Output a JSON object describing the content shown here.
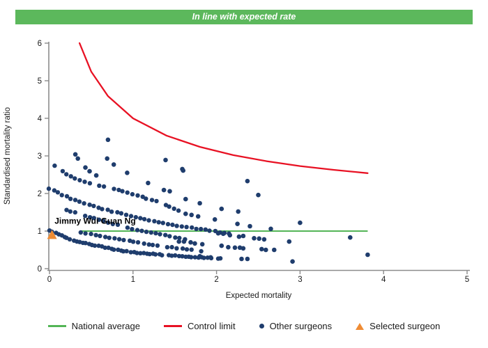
{
  "banner": {
    "title": "In line with expected rate"
  },
  "colors": {
    "banner_green": "#5cb85c",
    "national_average": "#53b556",
    "control_limit": "#e81123",
    "other_surgeons": "#1f3d6d",
    "selected_surgeon": "#ef8c34",
    "axis": "#8c8c8c",
    "text": "#1a1a1a"
  },
  "chart_data": {
    "type": "scatter",
    "title": "In line with expected rate",
    "xlabel": "Expected mortality",
    "ylabel": "Standardised mortality ratio",
    "xlim": [
      0,
      5
    ],
    "ylim": [
      0,
      6
    ],
    "x_ticks": [
      "0",
      "1",
      "2",
      "3",
      "4",
      "5"
    ],
    "y_ticks": [
      "0",
      "1",
      "2",
      "3",
      "4",
      "5",
      "6"
    ],
    "grid": false,
    "legend_position": "bottom",
    "surgeon_label": {
      "text": "Jimmy Wui Guan Ng",
      "x": 0.06,
      "y": 1.27
    },
    "selected_surgeon": {
      "x": 0.03,
      "y": 0.9
    },
    "national_average_line": {
      "y": 1.0,
      "x_start": 0.37,
      "x_end": 3.81
    },
    "control_limit_curve": [
      [
        0.36,
        6.0
      ],
      [
        0.5,
        5.24
      ],
      [
        0.7,
        4.59
      ],
      [
        1.0,
        4.0
      ],
      [
        1.4,
        3.54
      ],
      [
        1.8,
        3.24
      ],
      [
        2.2,
        3.02
      ],
      [
        2.6,
        2.86
      ],
      [
        3.0,
        2.73
      ],
      [
        3.4,
        2.63
      ],
      [
        3.81,
        2.54
      ]
    ],
    "other_surgeon_bands": [
      {
        "anchors": [
          [
            0.0,
            1.02
          ],
          [
            0.25,
            0.78
          ],
          [
            0.55,
            0.62
          ],
          [
            0.95,
            0.45
          ],
          [
            1.35,
            0.37
          ],
          [
            1.75,
            0.31
          ],
          [
            2.05,
            0.27
          ]
        ],
        "count": 55
      },
      {
        "anchors": [
          [
            0.38,
            0.97
          ],
          [
            0.62,
            0.87
          ],
          [
            0.92,
            0.75
          ],
          [
            1.25,
            0.63
          ],
          [
            1.55,
            0.54
          ],
          [
            1.82,
            0.47
          ]
        ],
        "count": 26
      },
      {
        "anchors": [
          [
            0.2,
            1.57
          ],
          [
            0.5,
            1.36
          ],
          [
            0.75,
            1.2
          ],
          [
            1.05,
            1.03
          ],
          [
            1.35,
            0.9
          ],
          [
            1.62,
            0.79
          ]
        ],
        "count": 26
      },
      {
        "anchors": [
          [
            0.0,
            2.13
          ],
          [
            0.3,
            1.83
          ],
          [
            0.62,
            1.6
          ],
          [
            0.95,
            1.42
          ],
          [
            1.3,
            1.24
          ],
          [
            1.6,
            1.12
          ],
          [
            1.9,
            1.02
          ],
          [
            2.15,
            0.93
          ]
        ],
        "count": 40
      },
      {
        "anchors": [
          [
            0.06,
            2.74
          ],
          [
            0.3,
            2.4
          ],
          [
            0.6,
            2.21
          ],
          [
            0.9,
            2.05
          ],
          [
            1.15,
            1.88
          ],
          [
            1.35,
            1.73
          ],
          [
            1.55,
            1.55
          ]
        ],
        "count": 28
      }
    ],
    "other_surgeon_points": [
      [
        0.7,
        3.43
      ],
      [
        0.31,
        3.04
      ],
      [
        0.34,
        2.93
      ],
      [
        0.43,
        2.69
      ],
      [
        0.48,
        2.59
      ],
      [
        0.56,
        2.48
      ],
      [
        0.69,
        2.93
      ],
      [
        0.77,
        2.77
      ],
      [
        0.93,
        2.55
      ],
      [
        1.18,
        2.28
      ],
      [
        1.39,
        2.89
      ],
      [
        1.59,
        2.65
      ],
      [
        1.37,
        2.09
      ],
      [
        1.44,
        2.06
      ],
      [
        1.6,
        2.61
      ],
      [
        1.63,
        1.85
      ],
      [
        1.8,
        1.74
      ],
      [
        2.06,
        1.59
      ],
      [
        1.63,
        1.46
      ],
      [
        1.7,
        1.43
      ],
      [
        1.78,
        1.39
      ],
      [
        1.98,
        1.31
      ],
      [
        2.26,
        1.52
      ],
      [
        2.25,
        1.19
      ],
      [
        2.37,
        2.33
      ],
      [
        2.5,
        1.96
      ],
      [
        2.4,
        1.13
      ],
      [
        2.65,
        1.06
      ],
      [
        3.0,
        1.22
      ],
      [
        2.27,
        0.85
      ],
      [
        2.32,
        0.87
      ],
      [
        2.45,
        0.81
      ],
      [
        2.51,
        0.8
      ],
      [
        2.57,
        0.78
      ],
      [
        2.87,
        0.72
      ],
      [
        2.02,
        0.94
      ],
      [
        2.08,
        0.93
      ],
      [
        2.16,
        0.89
      ],
      [
        1.55,
        0.72
      ],
      [
        1.61,
        0.72
      ],
      [
        1.69,
        0.7
      ],
      [
        1.74,
        0.67
      ],
      [
        1.83,
        0.65
      ],
      [
        2.06,
        0.61
      ],
      [
        2.14,
        0.57
      ],
      [
        2.22,
        0.56
      ],
      [
        2.28,
        0.56
      ],
      [
        2.32,
        0.54
      ],
      [
        2.54,
        0.52
      ],
      [
        2.59,
        0.5
      ],
      [
        2.69,
        0.5
      ],
      [
        1.8,
        0.33
      ],
      [
        1.93,
        0.3
      ],
      [
        2.3,
        0.26
      ],
      [
        2.37,
        0.26
      ],
      [
        2.91,
        0.19
      ],
      [
        3.6,
        0.83
      ],
      [
        3.81,
        0.37
      ]
    ]
  },
  "legend": {
    "items": [
      {
        "label": "National average",
        "marker": "line",
        "color": "#53b556"
      },
      {
        "label": "Control limit",
        "marker": "line",
        "color": "#e81123"
      },
      {
        "label": "Other surgeons",
        "marker": "dot",
        "color": "#1f3d6d"
      },
      {
        "label": "Selected surgeon",
        "marker": "triangle",
        "color": "#ef8c34"
      }
    ]
  }
}
